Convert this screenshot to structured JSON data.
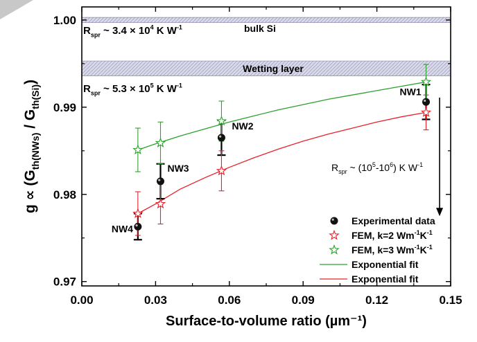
{
  "colors": {
    "axis": "#000000",
    "green": "#2ca02c",
    "red": "#e8202a",
    "band": "#d9d9ea",
    "band_hatch": "#9a9ab8",
    "corner": "#c8c8c8"
  },
  "chart_data": {
    "type": "scatter",
    "xlabel": "Surface-to-volume ratio (µm⁻¹)",
    "ylabel": {
      "parts": [
        {
          "t": "g ∝ (G",
          "sub": false
        },
        {
          "t": "th(NWs)",
          "sub": true
        },
        {
          "t": " / G",
          "sub": false
        },
        {
          "t": "th(Si)",
          "sub": true
        },
        {
          "t": ")",
          "sub": false
        }
      ]
    },
    "xlim": [
      0.0,
      0.15
    ],
    "ylim": [
      0.9695,
      1.0015
    ],
    "x_ticks": [
      "0.00",
      "0.03",
      "0.06",
      "0.09",
      "0.12",
      "0.15"
    ],
    "x_tick_values": [
      0.0,
      0.03,
      0.06,
      0.09,
      0.12,
      0.15
    ],
    "y_ticks": [
      "0.97",
      "0.98",
      "0.99",
      "1.00"
    ],
    "y_tick_values": [
      0.97,
      0.98,
      0.99,
      1.0
    ],
    "grid": false,
    "legend_position": "bottom-right",
    "series": [
      {
        "name": "Experimental data",
        "marker": "ball",
        "color": "#000000",
        "points": [
          {
            "x": 0.0228,
            "y": 0.9763,
            "err": 0.0015,
            "label": "NW4"
          },
          {
            "x": 0.032,
            "y": 0.9815,
            "err": 0.002,
            "label": "NW3"
          },
          {
            "x": 0.0568,
            "y": 0.9865,
            "err": 0.002,
            "label": "NW2"
          },
          {
            "x": 0.14,
            "y": 0.9906,
            "err": 0.002,
            "label": "NW1"
          }
        ]
      },
      {
        "name_parts": [
          {
            "t": "FEM, k=2 Wm",
            "sup": false
          },
          {
            "t": "-1",
            "sup": true
          },
          {
            "t": "K",
            "sup": false
          },
          {
            "t": "-1",
            "sup": true
          }
        ],
        "marker": "star",
        "color": "#e8202a",
        "points": [
          {
            "x": 0.0228,
            "y": 0.9778,
            "err": 0.0025
          },
          {
            "x": 0.032,
            "y": 0.9789,
            "err": 0.0023
          },
          {
            "x": 0.0568,
            "y": 0.9827,
            "err": 0.0023
          },
          {
            "x": 0.14,
            "y": 0.9894,
            "err": 0.002
          }
        ]
      },
      {
        "name_parts": [
          {
            "t": "FEM, k=3 Wm",
            "sup": false
          },
          {
            "t": "-1",
            "sup": true
          },
          {
            "t": "K",
            "sup": false
          },
          {
            "t": "-1",
            "sup": true
          }
        ],
        "marker": "star",
        "color": "#2ca02c",
        "points": [
          {
            "x": 0.0228,
            "y": 0.9851,
            "err": 0.0025
          },
          {
            "x": 0.032,
            "y": 0.9859,
            "err": 0.0024
          },
          {
            "x": 0.0568,
            "y": 0.9884,
            "err": 0.0023
          },
          {
            "x": 0.14,
            "y": 0.9929,
            "err": 0.002
          }
        ]
      },
      {
        "name": "Exponential fit",
        "type": "line",
        "color": "#2ca02c",
        "x": [
          0.0228,
          0.03,
          0.04,
          0.05,
          0.06,
          0.07,
          0.08,
          0.09,
          0.1,
          0.11,
          0.12,
          0.13,
          0.14
        ],
        "y": [
          0.9851,
          0.9858,
          0.9867,
          0.9875,
          0.9883,
          0.989,
          0.9897,
          0.9903,
          0.9909,
          0.9914,
          0.9919,
          0.9924,
          0.9929
        ]
      },
      {
        "name": "Exponential fit",
        "type": "line",
        "color": "#e8202a",
        "x": [
          0.0228,
          0.03,
          0.04,
          0.05,
          0.06,
          0.07,
          0.08,
          0.09,
          0.1,
          0.11,
          0.12,
          0.13,
          0.14
        ],
        "y": [
          0.9778,
          0.9789,
          0.9806,
          0.9819,
          0.9831,
          0.9842,
          0.9852,
          0.9861,
          0.9869,
          0.9876,
          0.9883,
          0.9889,
          0.9894
        ]
      }
    ],
    "bands": [
      {
        "label": "",
        "y_min": 0.9997,
        "y_max": 1.0003
      },
      {
        "label": "Wetting layer",
        "y_min": 0.9936,
        "y_max": 0.9953
      }
    ],
    "annotations": [
      {
        "id": "bulk",
        "text": "bulk Si"
      },
      {
        "id": "rspr1",
        "parts": [
          {
            "t": "R",
            "k": "n"
          },
          {
            "t": "spr",
            "k": "sub"
          },
          {
            "t": " ~ 3.4 × 10",
            "k": "n"
          },
          {
            "t": "4",
            "k": "sup"
          },
          {
            "t": " K W",
            "k": "n"
          },
          {
            "t": "-1",
            "k": "sup"
          }
        ]
      },
      {
        "id": "rspr2",
        "parts": [
          {
            "t": "R",
            "k": "n"
          },
          {
            "t": "spr",
            "k": "sub"
          },
          {
            "t": " ~ 5.3 × 10",
            "k": "n"
          },
          {
            "t": "5",
            "k": "sup"
          },
          {
            "t": " K W",
            "k": "n"
          },
          {
            "t": "-1",
            "k": "sup"
          }
        ]
      },
      {
        "id": "rspr3",
        "parts": [
          {
            "t": "R",
            "k": "n"
          },
          {
            "t": "spr",
            "k": "sub"
          },
          {
            "t": " ~ (10",
            "k": "n"
          },
          {
            "t": "5",
            "k": "sup"
          },
          {
            "t": "-10",
            "k": "n"
          },
          {
            "t": "6",
            "k": "sup"
          },
          {
            "t": ") K W",
            "k": "n"
          },
          {
            "t": "-1",
            "k": "sup"
          }
        ]
      }
    ],
    "arrow": {
      "x": 0.1455,
      "y_start": 0.9911,
      "y_end": 0.9775
    }
  }
}
